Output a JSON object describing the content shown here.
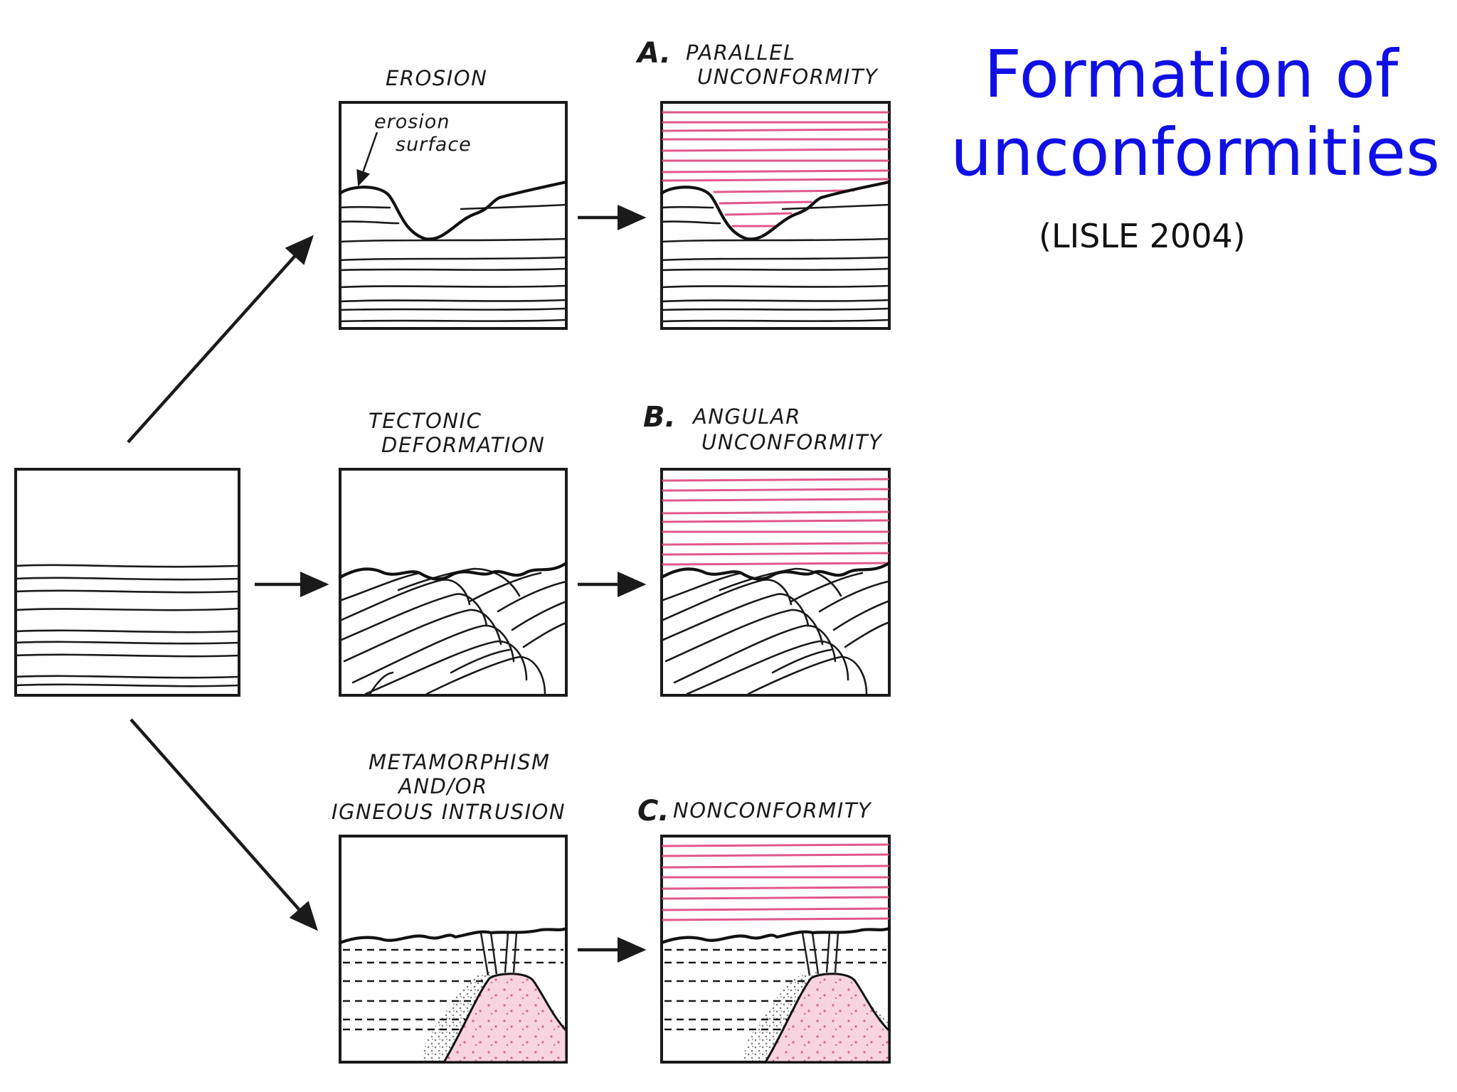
{
  "title_line1": "Formation of",
  "title_line2": "unconformities",
  "citation": "(LISLE 2004)",
  "labels": {
    "erosion": "EROSION",
    "erosion_surface_1": "erosion",
    "erosion_surface_2": "surface",
    "tectonic_1": "TECTONIC",
    "tectonic_2": "DEFORMATION",
    "meta_1": "METAMORPHISM",
    "meta_2": "AND/OR",
    "meta_3": "IGNEOUS INTRUSION",
    "a_letter": "A.",
    "a_1": "PARALLEL",
    "a_2": "UNCONFORMITY",
    "b_letter": "B.",
    "b_1": "ANGULAR",
    "b_2": "UNCONFORMITY",
    "c_letter": "C.",
    "c_1": "NONCONFORMITY"
  },
  "colors": {
    "title": "#1010e6",
    "cover_strata": "#e0588c",
    "intrusion_fill": "#f7d4e0",
    "ink": "#1a1a1a"
  }
}
